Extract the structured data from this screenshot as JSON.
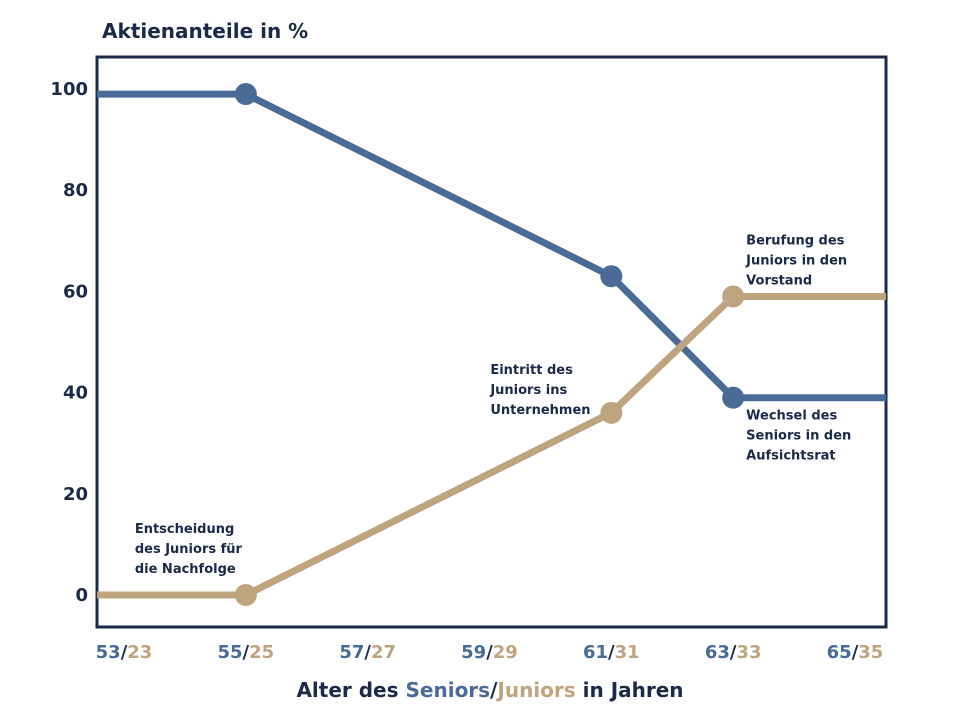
{
  "chart_data": {
    "type": "line",
    "title": "Aktienanteile in %",
    "x": [
      53,
      55,
      57,
      59,
      61,
      63,
      65
    ],
    "x_ticks": [
      {
        "senior": "53",
        "junior": "23"
      },
      {
        "senior": "55",
        "junior": "25"
      },
      {
        "senior": "57",
        "junior": "27"
      },
      {
        "senior": "59",
        "junior": "29"
      },
      {
        "senior": "61",
        "junior": "31"
      },
      {
        "senior": "63",
        "junior": "33"
      },
      {
        "senior": "65",
        "junior": "35"
      }
    ],
    "x_separator": "/",
    "xlabel": {
      "prefix": "Alter des ",
      "senior": "Seniors",
      "separator": "/",
      "junior": "Juniors",
      "suffix": " in Jahren"
    },
    "ylabel": "",
    "xlim": [
      53,
      65
    ],
    "ylim": [
      -5,
      105
    ],
    "yticks": [
      0,
      20,
      40,
      60,
      80,
      100
    ],
    "grid": false,
    "series": [
      {
        "key": "senior",
        "color": "#4a6b96",
        "points": [
          [
            53,
            99
          ],
          [
            55,
            99
          ],
          [
            61,
            63
          ],
          [
            63,
            39
          ],
          [
            65,
            39
          ]
        ],
        "markers": [
          [
            55,
            99
          ],
          [
            61,
            63
          ],
          [
            63,
            39
          ]
        ]
      },
      {
        "key": "junior",
        "color": "#bea47f",
        "points": [
          [
            53,
            0
          ],
          [
            55,
            0
          ],
          [
            61,
            36
          ],
          [
            63,
            59
          ],
          [
            65,
            59
          ]
        ],
        "markers": [
          [
            55,
            0
          ],
          [
            61,
            36
          ],
          [
            63,
            59
          ]
        ]
      }
    ],
    "annotations": [
      {
        "name": "annotation-entscheidung",
        "lines": [
          "Entscheidung",
          "des Juniors für",
          "die Nachfolge"
        ],
        "x": 55,
        "y": 0
      },
      {
        "name": "annotation-eintritt",
        "lines": [
          "Eintritt des",
          "Juniors ins",
          "Unternehmen"
        ],
        "x": 61,
        "y": 36
      },
      {
        "name": "annotation-berufung",
        "lines": [
          "Berufung des",
          "Juniors in den",
          "Vorstand"
        ],
        "x": 63,
        "y": 59
      },
      {
        "name": "annotation-wechsel",
        "lines": [
          "Wechsel des",
          "Seniors in den",
          "Aufsichtsrat"
        ],
        "x": 63,
        "y": 39
      }
    ]
  },
  "colors": {
    "frame": "#1b2a47",
    "senior": "#4a6b96",
    "junior": "#bea47f",
    "text": "#1b2a47"
  }
}
